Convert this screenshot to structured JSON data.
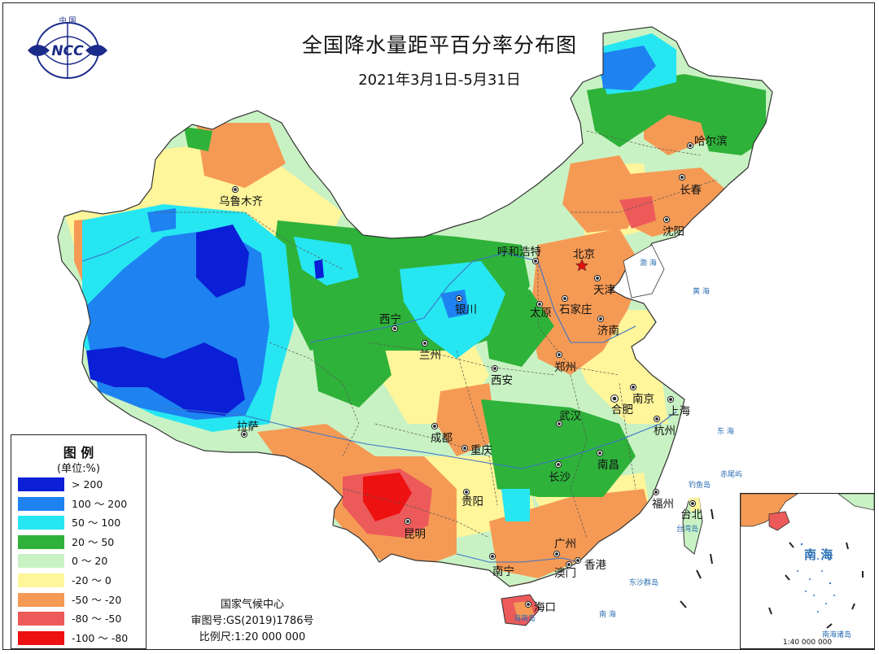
{
  "title": "全国降水量距平百分率分布图",
  "subtitle": "2021年3月1日-5月31日",
  "logo": {
    "top_text": "中 国",
    "center_text": "NCC",
    "icon": "globe-icon"
  },
  "legend": {
    "title": "图 例",
    "unit": "(单位:%)",
    "items": [
      {
        "label": "> 200",
        "color": "#0a1fd6"
      },
      {
        "label": "100 ～ 200",
        "color": "#1e82f0"
      },
      {
        "label": "50 ～ 100",
        "color": "#26e6f2"
      },
      {
        "label": "20 ～ 50",
        "color": "#2fb23a"
      },
      {
        "label": "0 ～ 20",
        "color": "#c9f2c4"
      },
      {
        "label": "-20 ～ 0",
        "color": "#fff59a"
      },
      {
        "label": "-50 ～ -20",
        "color": "#f59a55"
      },
      {
        "label": "-80 ～ -50",
        "color": "#ec5a5a"
      },
      {
        "label": "-100 ～ -80",
        "color": "#ee1111"
      }
    ]
  },
  "credits": {
    "org": "国家气候中心",
    "approval": "审图号:GS(2019)1786号",
    "scale": "比例尺:1:20 000 000"
  },
  "cities": [
    {
      "name": "乌鲁木齐"
    },
    {
      "name": "拉萨"
    },
    {
      "name": "西宁"
    },
    {
      "name": "兰州"
    },
    {
      "name": "银川"
    },
    {
      "name": "呼和浩特"
    },
    {
      "name": "北京"
    },
    {
      "name": "天津"
    },
    {
      "name": "石家庄"
    },
    {
      "name": "太原"
    },
    {
      "name": "济南"
    },
    {
      "name": "郑州"
    },
    {
      "name": "西安"
    },
    {
      "name": "成都"
    },
    {
      "name": "重庆"
    },
    {
      "name": "贵阳"
    },
    {
      "name": "昆明"
    },
    {
      "name": "南宁"
    },
    {
      "name": "广州"
    },
    {
      "name": "香港"
    },
    {
      "name": "澳门"
    },
    {
      "name": "海口"
    },
    {
      "name": "长沙"
    },
    {
      "name": "南昌"
    },
    {
      "name": "武汉"
    },
    {
      "name": "合肥"
    },
    {
      "name": "南京"
    },
    {
      "name": "上海"
    },
    {
      "name": "杭州"
    },
    {
      "name": "福州"
    },
    {
      "name": "台北"
    },
    {
      "name": "沈阳"
    },
    {
      "name": "长春"
    },
    {
      "name": "哈尔滨"
    }
  ],
  "sea_labels": {
    "east_sea": "东 海",
    "yellow_sea": "黄 海",
    "bohai": "渤 海",
    "south_sea": "南 海",
    "diaoyu": "钓鱼岛",
    "chiwei": "赤尾屿",
    "taiwan": "台湾岛",
    "hainan": "海南岛",
    "dongsha": "东沙群岛"
  },
  "inset": {
    "south_sea": "南 海",
    "islands": "南海诸岛",
    "scale": "1:40 000 000"
  }
}
